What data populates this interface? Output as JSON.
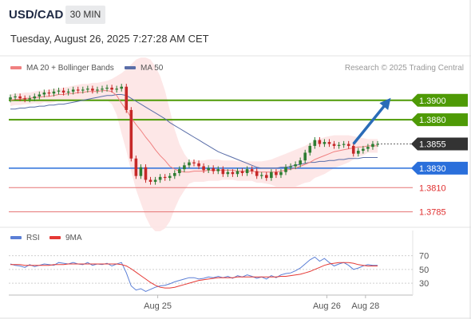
{
  "header": {
    "symbol": "USD/CAD",
    "timeframe": "30 MIN",
    "datetime": "Tuesday, August 26, 2025 7:27:28 AM CET"
  },
  "legend": {
    "ma20_label": "MA 20 + Bollinger Bands",
    "ma50_label": "MA 50",
    "research": "Research © 2025 Trading Central",
    "rsi_label": "RSI",
    "rsi_ma_label": "9MA"
  },
  "colors": {
    "ma20": "#f08080",
    "bollinger_fill": "#fde4e4",
    "ma50": "#5a6ea8",
    "resistance": "#4e9a06",
    "pivot": "#2a6fdb",
    "support": "#e57373",
    "support_text": "#e03030",
    "candle_up": "#2e7d32",
    "candle_down": "#c62828",
    "arrow": "#2a6cb8",
    "rsi": "#5b7fd6",
    "rsi_ma": "#e53935",
    "last_price_bg": "#333333"
  },
  "icons": {
    "trend_arrow": "arrow-up-right-icon"
  },
  "chart_data": {
    "type": "candlestick",
    "price_axis": {
      "ylim": [
        1.3765,
        1.3922
      ]
    },
    "x_labels": [
      {
        "label": "Aug 25",
        "index": 30
      },
      {
        "label": "Aug 26",
        "index": 65
      },
      {
        "label": "Aug 28",
        "index": 73
      }
    ],
    "last_price": {
      "label": "1.3855",
      "value": 1.3855
    },
    "levels": [
      {
        "label": "1.3900",
        "value": 1.39,
        "kind": "resistance"
      },
      {
        "label": "1.3880",
        "value": 1.388,
        "kind": "resistance"
      },
      {
        "label": "1.3830",
        "value": 1.383,
        "kind": "pivot"
      },
      {
        "label": "1.3810",
        "value": 1.381,
        "kind": "support"
      },
      {
        "label": "1.3785",
        "value": 1.3785,
        "kind": "support"
      }
    ],
    "forecast_arrow": {
      "from": {
        "index": 71,
        "value": 1.3855
      },
      "to": {
        "index": 78,
        "value": 1.3898
      }
    },
    "close": [
      1.3903,
      1.3904,
      1.3902,
      1.3901,
      1.3902,
      1.3904,
      1.3906,
      1.3908,
      1.3907,
      1.3909,
      1.391,
      1.3908,
      1.3909,
      1.3911,
      1.391,
      1.3911,
      1.3912,
      1.391,
      1.3911,
      1.3912,
      1.3913,
      1.3911,
      1.3912,
      1.3914,
      1.389,
      1.384,
      1.3822,
      1.3831,
      1.3818,
      1.3816,
      1.3818,
      1.3821,
      1.382,
      1.3822,
      1.3825,
      1.3829,
      1.3833,
      1.3836,
      1.3835,
      1.3832,
      1.3828,
      1.383,
      1.3827,
      1.3829,
      1.3824,
      1.3826,
      1.3824,
      1.3827,
      1.3825,
      1.3829,
      1.3827,
      1.3822,
      1.3823,
      1.382,
      1.3826,
      1.3823,
      1.3826,
      1.3831,
      1.3832,
      1.3834,
      1.3838,
      1.3846,
      1.3853,
      1.3859,
      1.3855,
      1.3857,
      1.3855,
      1.3853,
      1.3854,
      1.3855,
      1.3853,
      1.3845,
      1.3848,
      1.385,
      1.3852,
      1.3855,
      1.3855
    ],
    "ma20": [
      1.39,
      1.3901,
      1.3901,
      1.3902,
      1.3902,
      1.3903,
      1.3903,
      1.3904,
      1.3904,
      1.3905,
      1.3906,
      1.3906,
      1.3907,
      1.3907,
      1.3908,
      1.3908,
      1.3909,
      1.3909,
      1.3909,
      1.391,
      1.391,
      1.3909,
      1.3905,
      1.3897,
      1.389,
      1.3882,
      1.3875,
      1.3869,
      1.3862,
      1.3856,
      1.3849,
      1.3843,
      1.3838,
      1.3832,
      1.3829,
      1.3827,
      1.3826,
      1.3826,
      1.3827,
      1.3827,
      1.3827,
      1.3828,
      1.3828,
      1.3828,
      1.3828,
      1.3828,
      1.3828,
      1.3827,
      1.3827,
      1.3827,
      1.3827,
      1.3826,
      1.3826,
      1.3826,
      1.3826,
      1.3826,
      1.3827,
      1.3828,
      1.3829,
      1.383,
      1.3832,
      1.3834,
      1.3836,
      1.3839,
      1.3841,
      1.3843,
      1.3845,
      1.3847,
      1.3848,
      1.3849,
      1.385,
      1.3851,
      1.3852,
      1.3852,
      1.3853,
      1.3853,
      1.3853
    ],
    "ma50": [
      1.3891,
      1.3891,
      1.3892,
      1.3892,
      1.3893,
      1.3893,
      1.3894,
      1.3894,
      1.3895,
      1.3895,
      1.3896,
      1.3896,
      1.3897,
      1.3898,
      1.3899,
      1.39,
      1.3901,
      1.3902,
      1.3903,
      1.3904,
      1.3905,
      1.3905,
      1.3906,
      1.3906,
      1.3905,
      1.3902,
      1.3899,
      1.3896,
      1.3893,
      1.389,
      1.3887,
      1.3884,
      1.3881,
      1.3877,
      1.3874,
      1.3871,
      1.3868,
      1.3865,
      1.3862,
      1.3859,
      1.3856,
      1.3853,
      1.385,
      1.3847,
      1.3845,
      1.3843,
      1.3841,
      1.3839,
      1.3837,
      1.3835,
      1.3833,
      1.3831,
      1.383,
      1.383,
      1.383,
      1.383,
      1.3831,
      1.3831,
      1.3832,
      1.3833,
      1.3834,
      1.3835,
      1.3836,
      1.3836,
      1.3837,
      1.3837,
      1.3838,
      1.3838,
      1.3839,
      1.3839,
      1.384,
      1.384,
      1.384,
      1.3841,
      1.3841,
      1.3841,
      1.3841
    ],
    "bb_upper": [
      1.3906,
      1.3907,
      1.3907,
      1.3908,
      1.3908,
      1.3909,
      1.391,
      1.391,
      1.3911,
      1.3912,
      1.3912,
      1.3913,
      1.3914,
      1.3915,
      1.3916,
      1.3917,
      1.3917,
      1.3918,
      1.3918,
      1.3919,
      1.392,
      1.3922,
      1.3925,
      1.3928,
      1.3932,
      1.3937,
      1.3942,
      1.3944,
      1.3944,
      1.3942,
      1.3935,
      1.3925,
      1.391,
      1.389,
      1.387,
      1.3855,
      1.3845,
      1.3838,
      1.3838,
      1.3838,
      1.3838,
      1.3839,
      1.3839,
      1.3839,
      1.3838,
      1.3838,
      1.3838,
      1.3837,
      1.3837,
      1.3837,
      1.3837,
      1.3837,
      1.3837,
      1.3838,
      1.3839,
      1.3841,
      1.3843,
      1.3845,
      1.3847,
      1.3849,
      1.3851,
      1.3853,
      1.3856,
      1.3858,
      1.386,
      1.3862,
      1.3863,
      1.3864,
      1.3864,
      1.3864,
      1.3864,
      1.3863,
      1.3862,
      1.3861,
      1.386,
      1.386,
      1.386
    ],
    "bb_lower": [
      1.3894,
      1.3895,
      1.3895,
      1.3896,
      1.3896,
      1.3897,
      1.3896,
      1.3898,
      1.3897,
      1.3898,
      1.39,
      1.3899,
      1.39,
      1.3899,
      1.39,
      1.3899,
      1.3901,
      1.39,
      1.39,
      1.3901,
      1.39,
      1.3896,
      1.3885,
      1.3866,
      1.3848,
      1.3827,
      1.3808,
      1.3794,
      1.378,
      1.377,
      1.3765,
      1.3765,
      1.3768,
      1.3775,
      1.3788,
      1.3799,
      1.3807,
      1.3814,
      1.3816,
      1.3816,
      1.3816,
      1.3817,
      1.3817,
      1.3817,
      1.3818,
      1.3818,
      1.3818,
      1.3817,
      1.3817,
      1.3817,
      1.3817,
      1.3815,
      1.3815,
      1.3814,
      1.3813,
      1.3811,
      1.3811,
      1.3811,
      1.3811,
      1.3811,
      1.3813,
      1.3815,
      1.3816,
      1.382,
      1.3822,
      1.3824,
      1.3827,
      1.383,
      1.3832,
      1.3834,
      1.3836,
      1.3839,
      1.3842,
      1.3843,
      1.3846,
      1.3846,
      1.3846
    ],
    "rsi_axis": {
      "ylim": [
        15,
        80
      ],
      "ticks": [
        70,
        50,
        30
      ]
    },
    "rsi": [
      58,
      56,
      55,
      53,
      57,
      54,
      56,
      58,
      57,
      56,
      60,
      59,
      58,
      60,
      58,
      57,
      60,
      56,
      58,
      57,
      59,
      55,
      58,
      60,
      45,
      26,
      20,
      22,
      18,
      21,
      24,
      26,
      27,
      29,
      32,
      34,
      36,
      38,
      38,
      36,
      37,
      39,
      38,
      40,
      38,
      40,
      37,
      41,
      39,
      42,
      40,
      37,
      39,
      36,
      41,
      38,
      42,
      44,
      45,
      48,
      52,
      58,
      64,
      68,
      62,
      66,
      60,
      55,
      58,
      60,
      56,
      50,
      52,
      55,
      57,
      56,
      56
    ],
    "rsi_ma": [
      57,
      57,
      57,
      56,
      56,
      56,
      56,
      56,
      56,
      57,
      57,
      57,
      58,
      58,
      58,
      58,
      58,
      58,
      58,
      58,
      58,
      58,
      58,
      57,
      55,
      51,
      46,
      41,
      36,
      31,
      27,
      24,
      23,
      23,
      24,
      26,
      28,
      30,
      32,
      34,
      35,
      36,
      37,
      38,
      38,
      38,
      38,
      39,
      39,
      39,
      39,
      39,
      39,
      39,
      39,
      39,
      40,
      40,
      41,
      42,
      43,
      45,
      47,
      50,
      53,
      56,
      58,
      59,
      60,
      60,
      60,
      59,
      57,
      56,
      55,
      55,
      55
    ]
  }
}
